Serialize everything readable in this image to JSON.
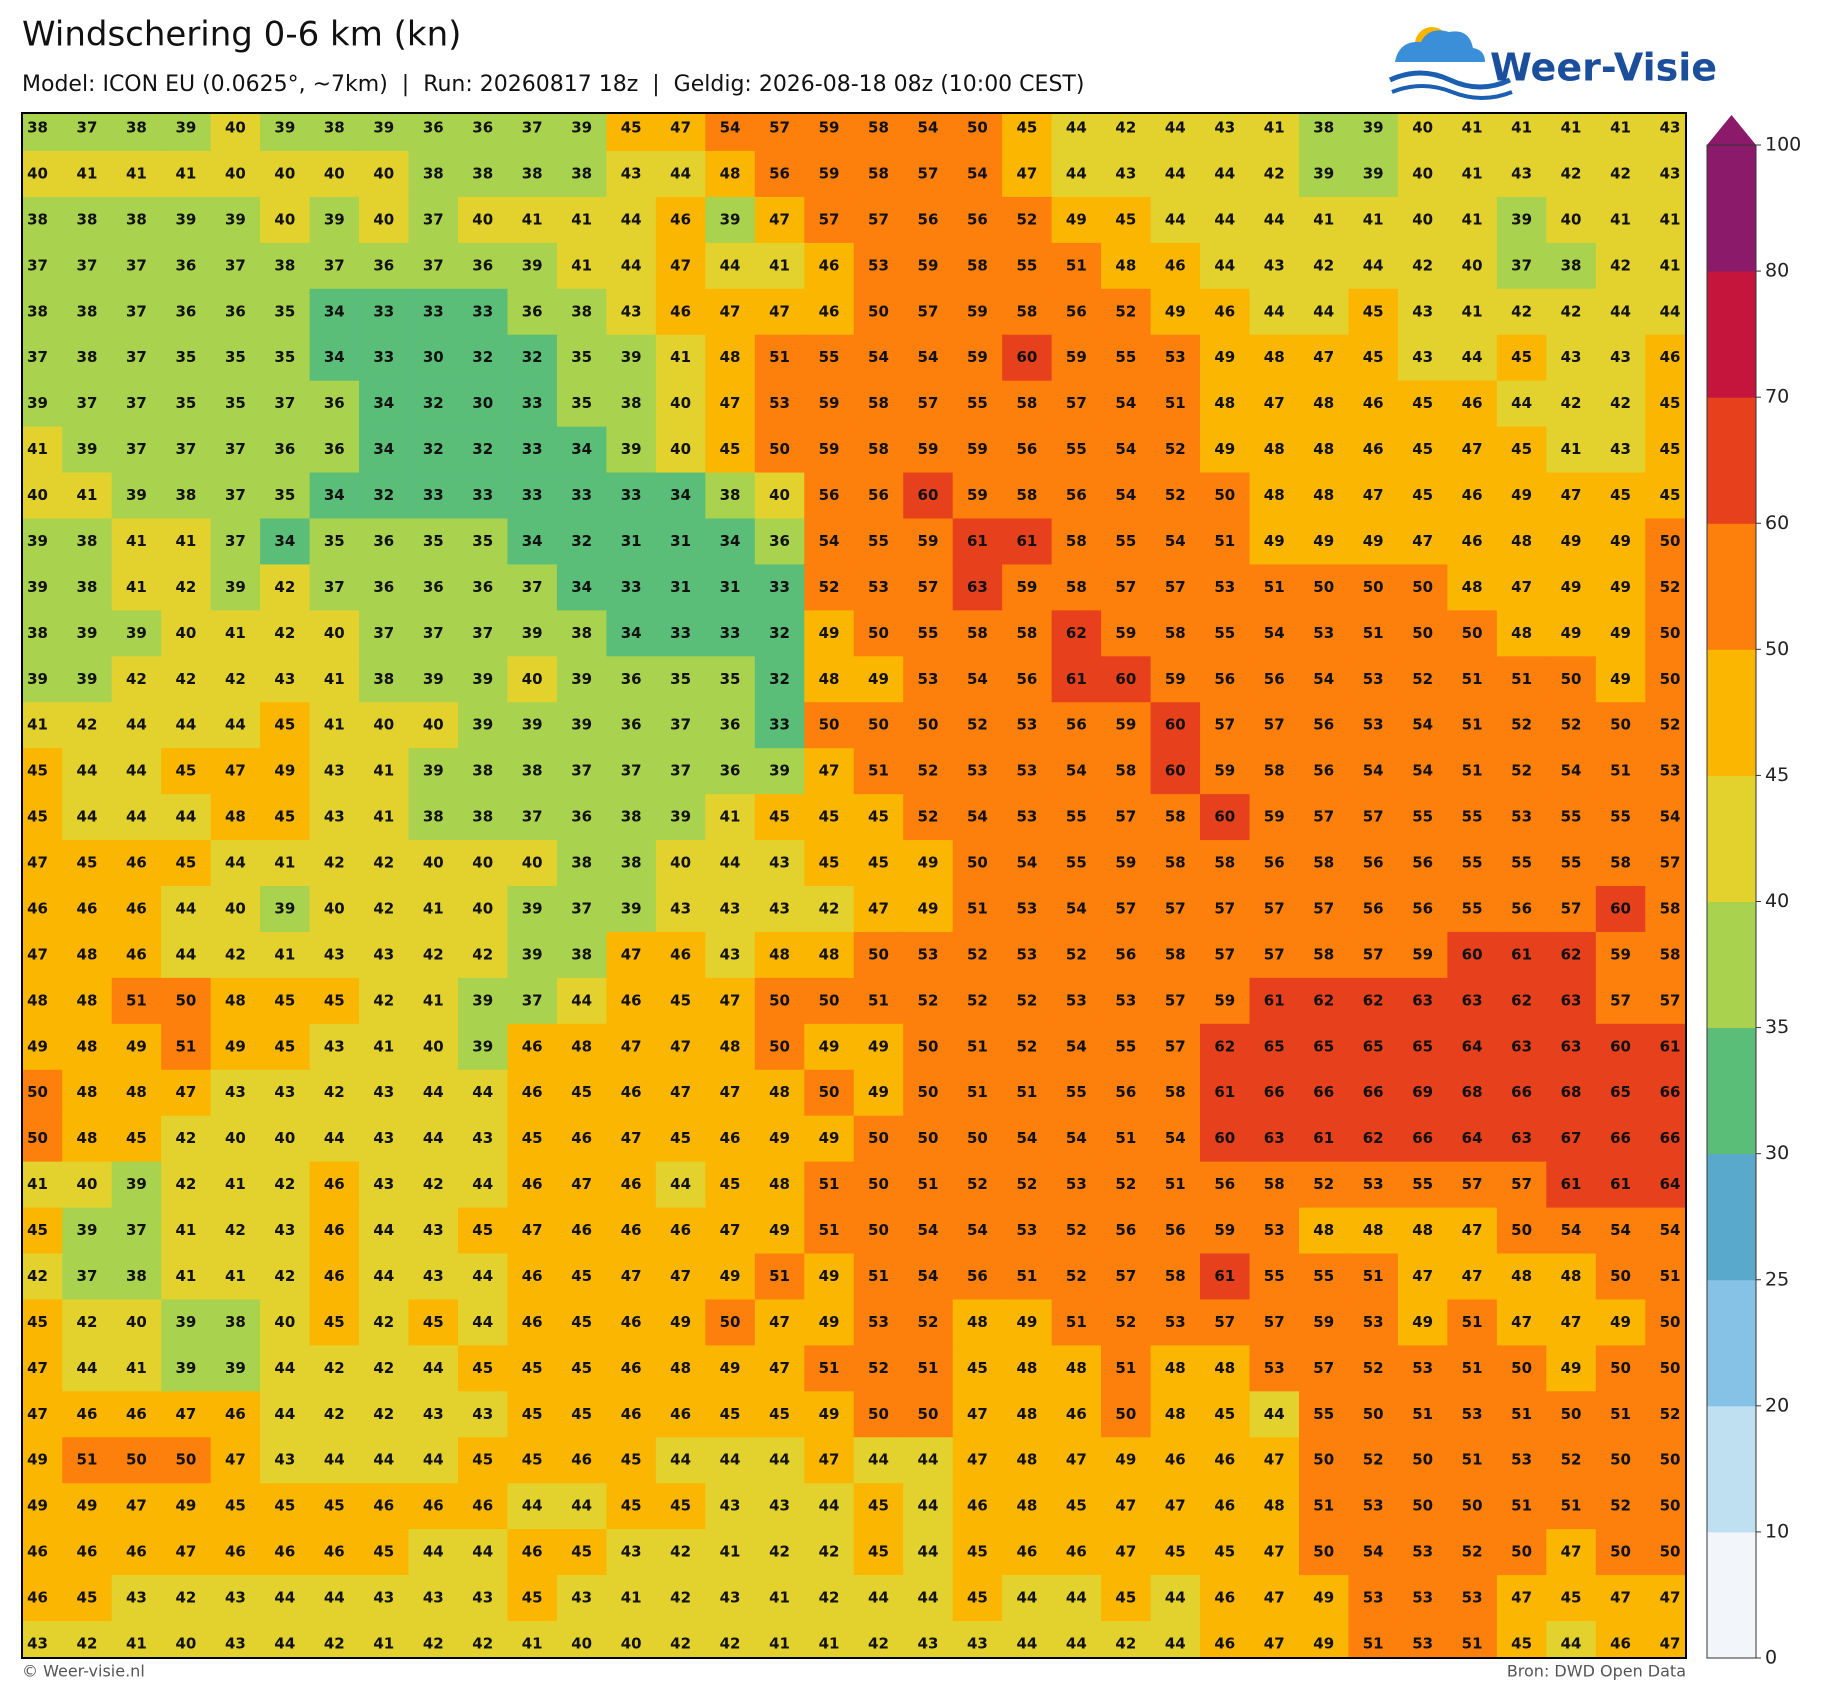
{
  "header": {
    "title": "Windschering 0-6 km (kn)",
    "subtitle": "Model: ICON EU (0.0625°, ~7km)  |  Run: 20260817 18z  |  Geldig: 2026-08-18 08z (10:00 CEST)",
    "logo": "Weer-Visie"
  },
  "grid": {
    "rows": [
      [
        38,
        37,
        38,
        39,
        40,
        39,
        38,
        39,
        36,
        36,
        37,
        39,
        45,
        47,
        54,
        57,
        59,
        58,
        54,
        50,
        45,
        44,
        42,
        44,
        43,
        41,
        38,
        39,
        40,
        41,
        41,
        41,
        41,
        43
      ],
      [
        40,
        41,
        41,
        41,
        40,
        40,
        40,
        40,
        38,
        38,
        38,
        38,
        43,
        44,
        48,
        56,
        59,
        58,
        57,
        54,
        47,
        44,
        43,
        44,
        44,
        42,
        39,
        39,
        40,
        41,
        43,
        42,
        42,
        43
      ],
      [
        38,
        38,
        38,
        39,
        39,
        40,
        39,
        40,
        37,
        40,
        41,
        41,
        44,
        46,
        39,
        47,
        57,
        57,
        56,
        56,
        52,
        49,
        45,
        44,
        44,
        44,
        41,
        41,
        40,
        41,
        39,
        40,
        41,
        41
      ],
      [
        37,
        37,
        37,
        36,
        37,
        38,
        37,
        36,
        37,
        36,
        39,
        41,
        44,
        47,
        44,
        41,
        46,
        53,
        59,
        58,
        55,
        51,
        48,
        46,
        44,
        43,
        42,
        44,
        42,
        40,
        37,
        38,
        42,
        41
      ],
      [
        38,
        38,
        37,
        36,
        36,
        35,
        34,
        33,
        33,
        33,
        36,
        38,
        43,
        46,
        47,
        47,
        46,
        50,
        57,
        59,
        58,
        56,
        52,
        49,
        46,
        44,
        44,
        45,
        43,
        41,
        42,
        42,
        44,
        44
      ],
      [
        37,
        38,
        37,
        35,
        35,
        35,
        34,
        33,
        30,
        32,
        32,
        35,
        39,
        41,
        48,
        51,
        55,
        54,
        54,
        59,
        60,
        59,
        55,
        53,
        49,
        48,
        47,
        45,
        43,
        44,
        45,
        43,
        43,
        46
      ],
      [
        39,
        37,
        37,
        35,
        35,
        37,
        36,
        34,
        32,
        30,
        33,
        35,
        38,
        40,
        47,
        53,
        59,
        58,
        57,
        55,
        58,
        57,
        54,
        51,
        48,
        47,
        48,
        46,
        45,
        46,
        44,
        42,
        42,
        45
      ],
      [
        41,
        39,
        37,
        37,
        37,
        36,
        36,
        34,
        32,
        32,
        33,
        34,
        39,
        40,
        45,
        50,
        59,
        58,
        59,
        59,
        56,
        55,
        54,
        52,
        49,
        48,
        48,
        46,
        45,
        47,
        45,
        41,
        43,
        45
      ],
      [
        40,
        41,
        39,
        38,
        37,
        35,
        34,
        32,
        33,
        33,
        33,
        33,
        33,
        34,
        38,
        40,
        56,
        56,
        60,
        59,
        58,
        56,
        54,
        52,
        50,
        48,
        48,
        47,
        45,
        46,
        49,
        47,
        45,
        45
      ],
      [
        39,
        38,
        41,
        41,
        37,
        34,
        35,
        36,
        35,
        35,
        34,
        32,
        31,
        31,
        34,
        36,
        54,
        55,
        59,
        61,
        61,
        58,
        55,
        54,
        51,
        49,
        49,
        49,
        47,
        46,
        48,
        49,
        49,
        50
      ],
      [
        39,
        38,
        41,
        42,
        39,
        42,
        37,
        36,
        36,
        36,
        37,
        34,
        33,
        31,
        31,
        33,
        52,
        53,
        57,
        63,
        59,
        58,
        57,
        57,
        53,
        51,
        50,
        50,
        50,
        48,
        47,
        49,
        49,
        52
      ],
      [
        38,
        39,
        39,
        40,
        41,
        42,
        40,
        37,
        37,
        37,
        39,
        38,
        34,
        33,
        33,
        32,
        49,
        50,
        55,
        58,
        58,
        62,
        59,
        58,
        55,
        54,
        53,
        51,
        50,
        50,
        48,
        49,
        49,
        50
      ],
      [
        39,
        39,
        42,
        42,
        42,
        43,
        41,
        38,
        39,
        39,
        40,
        39,
        36,
        35,
        35,
        32,
        48,
        49,
        53,
        54,
        56,
        61,
        60,
        59,
        56,
        56,
        54,
        53,
        52,
        51,
        51,
        50,
        49,
        50
      ],
      [
        41,
        42,
        44,
        44,
        44,
        45,
        41,
        40,
        40,
        39,
        39,
        39,
        36,
        37,
        36,
        33,
        50,
        50,
        50,
        52,
        53,
        56,
        59,
        60,
        57,
        57,
        56,
        53,
        54,
        51,
        52,
        52,
        50,
        52
      ],
      [
        45,
        44,
        44,
        45,
        47,
        49,
        43,
        41,
        39,
        38,
        38,
        37,
        37,
        37,
        36,
        39,
        47,
        51,
        52,
        53,
        53,
        54,
        58,
        60,
        59,
        58,
        56,
        54,
        54,
        51,
        52,
        54,
        51,
        53
      ],
      [
        45,
        44,
        44,
        44,
        48,
        45,
        43,
        41,
        38,
        38,
        37,
        36,
        38,
        39,
        41,
        45,
        45,
        45,
        52,
        54,
        53,
        55,
        57,
        58,
        60,
        59,
        57,
        57,
        55,
        55,
        53,
        55,
        55,
        54
      ],
      [
        47,
        45,
        46,
        45,
        44,
        41,
        42,
        42,
        40,
        40,
        40,
        38,
        38,
        40,
        44,
        43,
        45,
        45,
        49,
        50,
        54,
        55,
        59,
        58,
        58,
        56,
        58,
        56,
        56,
        55,
        55,
        55,
        58,
        57
      ],
      [
        46,
        46,
        46,
        44,
        40,
        39,
        40,
        42,
        41,
        40,
        39,
        37,
        39,
        43,
        43,
        43,
        42,
        47,
        49,
        51,
        53,
        54,
        57,
        57,
        57,
        57,
        57,
        56,
        56,
        55,
        56,
        57,
        60,
        58
      ],
      [
        47,
        48,
        46,
        44,
        42,
        41,
        43,
        43,
        42,
        42,
        39,
        38,
        47,
        46,
        43,
        48,
        48,
        50,
        53,
        52,
        53,
        52,
        56,
        58,
        57,
        57,
        58,
        57,
        59,
        60,
        61,
        62,
        59,
        58
      ],
      [
        48,
        48,
        51,
        50,
        48,
        45,
        45,
        42,
        41,
        39,
        37,
        44,
        46,
        45,
        47,
        50,
        50,
        51,
        52,
        52,
        52,
        53,
        53,
        57,
        59,
        61,
        62,
        62,
        63,
        63,
        62,
        63,
        57,
        57
      ],
      [
        49,
        48,
        49,
        51,
        49,
        45,
        43,
        41,
        40,
        39,
        46,
        48,
        47,
        47,
        48,
        50,
        49,
        49,
        50,
        51,
        52,
        54,
        55,
        57,
        62,
        65,
        65,
        65,
        65,
        64,
        63,
        63,
        60,
        61
      ],
      [
        50,
        48,
        48,
        47,
        43,
        43,
        42,
        43,
        44,
        44,
        46,
        45,
        46,
        47,
        47,
        48,
        50,
        49,
        50,
        51,
        51,
        55,
        56,
        58,
        61,
        66,
        66,
        66,
        69,
        68,
        66,
        68,
        65,
        66
      ],
      [
        50,
        48,
        45,
        42,
        40,
        40,
        44,
        43,
        44,
        43,
        45,
        46,
        47,
        45,
        46,
        49,
        49,
        50,
        50,
        50,
        54,
        54,
        51,
        54,
        60,
        63,
        61,
        62,
        66,
        64,
        63,
        67,
        66,
        66
      ],
      [
        41,
        40,
        39,
        42,
        41,
        42,
        46,
        43,
        42,
        44,
        46,
        47,
        46,
        44,
        45,
        48,
        51,
        50,
        51,
        52,
        52,
        53,
        52,
        51,
        56,
        58,
        52,
        53,
        55,
        57,
        57,
        61,
        61,
        64
      ],
      [
        45,
        39,
        37,
        41,
        42,
        43,
        46,
        44,
        43,
        45,
        47,
        46,
        46,
        46,
        47,
        49,
        51,
        50,
        54,
        54,
        53,
        52,
        56,
        56,
        59,
        53,
        48,
        48,
        48,
        47,
        50,
        54,
        54,
        54
      ],
      [
        42,
        37,
        38,
        41,
        41,
        42,
        46,
        44,
        43,
        44,
        46,
        45,
        47,
        47,
        49,
        51,
        49,
        51,
        54,
        56,
        51,
        52,
        57,
        58,
        61,
        55,
        55,
        51,
        47,
        47,
        48,
        48,
        50,
        51
      ],
      [
        45,
        42,
        40,
        39,
        38,
        40,
        45,
        42,
        45,
        44,
        46,
        45,
        46,
        49,
        50,
        47,
        49,
        53,
        52,
        48,
        49,
        51,
        52,
        53,
        57,
        57,
        59,
        53,
        49,
        51,
        47,
        47,
        49,
        50
      ],
      [
        47,
        44,
        41,
        39,
        39,
        44,
        42,
        42,
        44,
        45,
        45,
        45,
        46,
        48,
        49,
        47,
        51,
        52,
        51,
        45,
        48,
        48,
        51,
        48,
        48,
        53,
        57,
        52,
        53,
        51,
        50,
        49,
        50,
        50
      ],
      [
        47,
        46,
        46,
        47,
        46,
        44,
        42,
        42,
        43,
        43,
        45,
        45,
        46,
        46,
        45,
        45,
        49,
        50,
        50,
        47,
        48,
        46,
        50,
        48,
        45,
        44,
        55,
        50,
        51,
        53,
        51,
        50,
        51,
        52
      ],
      [
        49,
        51,
        50,
        50,
        47,
        43,
        44,
        44,
        44,
        45,
        45,
        46,
        45,
        44,
        44,
        44,
        47,
        44,
        44,
        47,
        48,
        47,
        49,
        46,
        46,
        47,
        50,
        52,
        50,
        51,
        53,
        52,
        50,
        50
      ],
      [
        49,
        49,
        47,
        49,
        45,
        45,
        45,
        46,
        46,
        46,
        44,
        44,
        45,
        45,
        43,
        43,
        44,
        45,
        44,
        46,
        48,
        45,
        47,
        47,
        46,
        48,
        51,
        53,
        50,
        50,
        51,
        51,
        52,
        50
      ],
      [
        46,
        46,
        46,
        47,
        46,
        46,
        46,
        45,
        44,
        44,
        46,
        45,
        43,
        42,
        41,
        42,
        42,
        45,
        44,
        45,
        46,
        46,
        47,
        45,
        45,
        47,
        50,
        54,
        53,
        52,
        50,
        47,
        50,
        50
      ],
      [
        46,
        45,
        43,
        42,
        43,
        44,
        44,
        43,
        43,
        43,
        45,
        43,
        41,
        42,
        43,
        41,
        42,
        44,
        44,
        45,
        44,
        44,
        45,
        44,
        46,
        47,
        49,
        53,
        53,
        53,
        47,
        45,
        47,
        47
      ],
      [
        43,
        42,
        41,
        40,
        43,
        44,
        42,
        41,
        42,
        42,
        41,
        40,
        40,
        42,
        42,
        41,
        41,
        42,
        43,
        43,
        44,
        44,
        42,
        44,
        46,
        47,
        49,
        51,
        53,
        51,
        45,
        44,
        46,
        47
      ]
    ]
  },
  "colorbar": {
    "levels": [
      0,
      10,
      20,
      25,
      30,
      35,
      40,
      45,
      50,
      60,
      70,
      80,
      100
    ],
    "colors": [
      "#f2f6fa",
      "#bfe0f1",
      "#86c2e5",
      "#58a9cb",
      "#5abd78",
      "#a9d24f",
      "#e3d22e",
      "#fbb602",
      "#fd7f0c",
      "#e6401c",
      "#c6153c",
      "#8b1a6a"
    ]
  },
  "footer": {
    "left": "© Weer-visie.nl",
    "right": "Bron: DWD Open Data"
  }
}
